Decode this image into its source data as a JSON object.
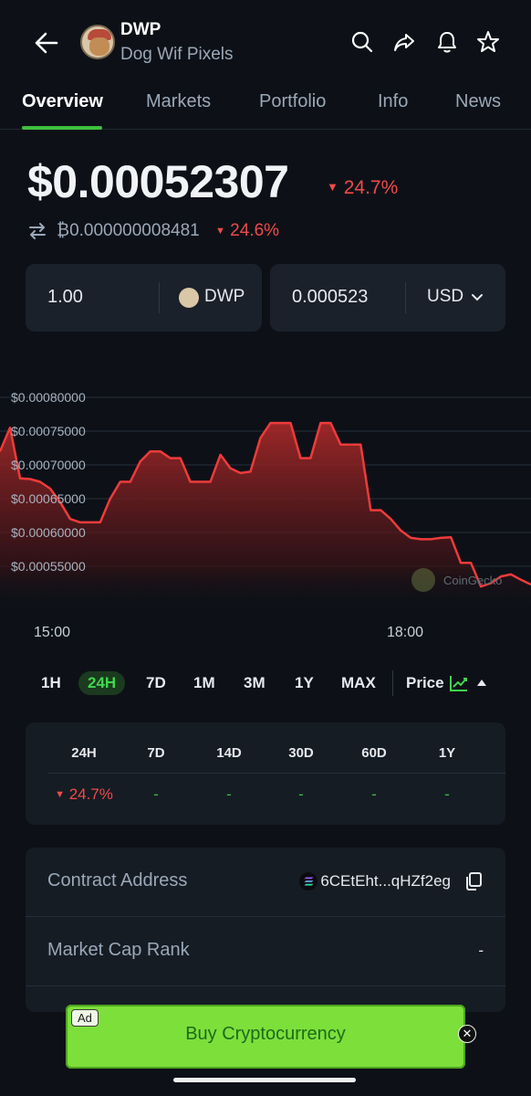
{
  "header": {
    "symbol": "DWP",
    "name": "Dog Wif Pixels",
    "icons": [
      "back-arrow-icon",
      "search-icon",
      "share-icon",
      "bell-icon",
      "star-icon"
    ]
  },
  "tabs": [
    "Overview",
    "Markets",
    "Portfolio",
    "Info",
    "News"
  ],
  "price": {
    "usd": "$0.00052307",
    "change": "24.7%",
    "btc": "₿0.000000008481",
    "btc_change": "24.6%"
  },
  "converter": {
    "amount": "1.00",
    "coin": "DWP",
    "value": "0.000523",
    "currency": "USD"
  },
  "chart_data": {
    "type": "area",
    "ylabels": [
      "$0.00080000",
      "$0.00075000",
      "$0.00070000",
      "$0.00065000",
      "$0.00060000",
      "$0.00055000"
    ],
    "xlabels": [
      "15:00",
      "18:00"
    ],
    "watermark": "CoinGecko",
    "values": [
      0.00072,
      0.000755,
      0.00068,
      0.000679,
      0.000675,
      0.000665,
      0.000645,
      0.00062,
      0.000615,
      0.000615,
      0.000615,
      0.00065,
      0.000675,
      0.000675,
      0.000705,
      0.00072,
      0.00072,
      0.00071,
      0.00071,
      0.000675,
      0.000675,
      0.000675,
      0.000715,
      0.000695,
      0.000688,
      0.00069,
      0.00074,
      0.000762,
      0.000762,
      0.000762,
      0.00071,
      0.00071,
      0.000762,
      0.000762,
      0.00073,
      0.00073,
      0.00073,
      0.000633,
      0.000633,
      0.00062,
      0.000603,
      0.000592,
      0.00059,
      0.00059,
      0.000592,
      0.000593,
      0.000555,
      0.000555,
      0.00052,
      0.000525,
      0.000535,
      0.000538,
      0.00053,
      0.000523
    ],
    "ylim": [
      0.0005,
      0.0008
    ],
    "color": "#ef3b3b"
  },
  "ranges": [
    "1H",
    "24H",
    "7D",
    "1M",
    "3M",
    "1Y",
    "MAX"
  ],
  "selected_range": "24H",
  "price_toggle": "Price",
  "performance": {
    "headers": [
      "24H",
      "7D",
      "14D",
      "30D",
      "60D",
      "1Y"
    ],
    "values": [
      "24.7%",
      "-",
      "-",
      "-",
      "-",
      "-"
    ]
  },
  "info": {
    "contract_label": "Contract Address",
    "contract_value": "6CEtEht...qHZf2eg",
    "rank_label": "Market Cap Rank",
    "rank_value": "-"
  },
  "ad": {
    "badge": "Ad",
    "text": "Buy Cryptocurrency",
    "close": "✕"
  }
}
